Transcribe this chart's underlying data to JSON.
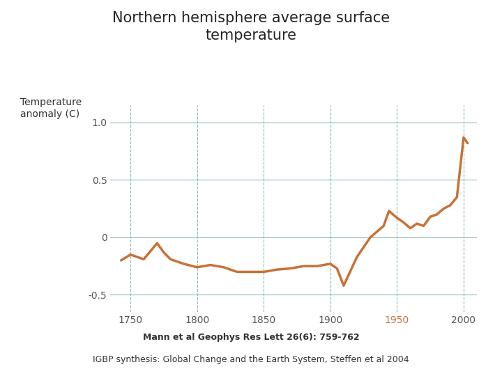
{
  "title_line1": "Northern hemisphere average surface",
  "title_line2": "temperature",
  "ylabel_line1": "Temperature",
  "ylabel_line2": "anomaly (C)",
  "citation1": "Mann et al Geophys Res Lett 26(6): 759-762",
  "citation2": "IGBP synthesis: Global Change and the Earth System, Steffen et al 2004",
  "line_color": "#C87137",
  "line_width": 2.5,
  "background_color": "#ffffff",
  "xlim": [
    1735,
    2010
  ],
  "ylim": [
    -0.65,
    1.15
  ],
  "yticks": [
    -0.5,
    0,
    0.5,
    1.0
  ],
  "xticks": [
    1750,
    1800,
    1850,
    1900,
    1950,
    2000
  ],
  "x1950_color": "#C87137",
  "tick_color": "#555555",
  "grid_color": "#88bbbb",
  "grid_color_h": "#88bbbb",
  "years": [
    1743,
    1750,
    1760,
    1770,
    1775,
    1780,
    1790,
    1800,
    1810,
    1820,
    1830,
    1840,
    1850,
    1855,
    1860,
    1870,
    1880,
    1890,
    1900,
    1905,
    1910,
    1920,
    1930,
    1940,
    1944,
    1950,
    1955,
    1960,
    1965,
    1970,
    1975,
    1980,
    1985,
    1990,
    1995,
    2000,
    2003
  ],
  "temps": [
    -0.2,
    -0.15,
    -0.19,
    -0.05,
    -0.13,
    -0.19,
    -0.23,
    -0.26,
    -0.24,
    -0.26,
    -0.3,
    -0.3,
    -0.3,
    -0.29,
    -0.28,
    -0.27,
    -0.25,
    -0.25,
    -0.23,
    -0.27,
    -0.42,
    -0.17,
    0.0,
    0.1,
    0.23,
    0.17,
    0.13,
    0.08,
    0.12,
    0.1,
    0.18,
    0.2,
    0.25,
    0.28,
    0.35,
    0.87,
    0.82
  ]
}
